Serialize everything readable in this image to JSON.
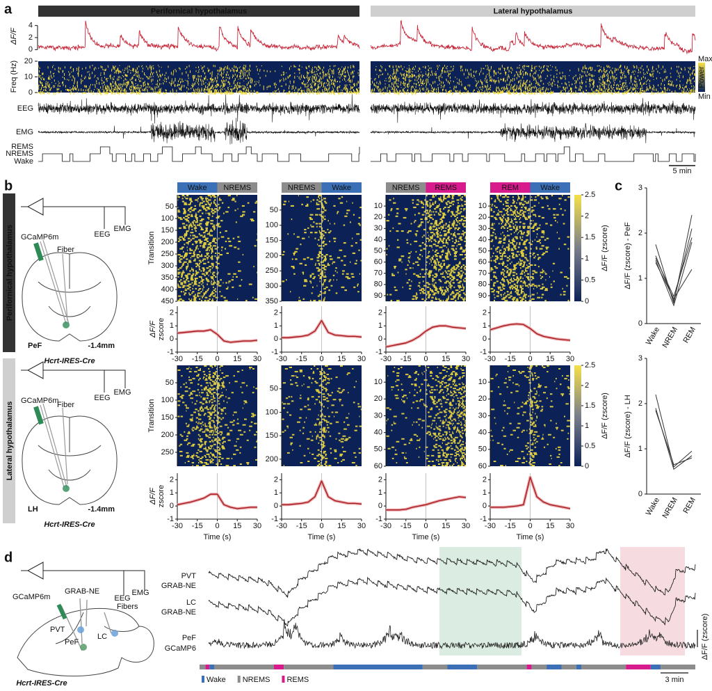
{
  "panel_labels": [
    "a",
    "b",
    "c",
    "d"
  ],
  "panel_a": {
    "headers": [
      "Perifornical hypothalamus",
      "Lateral hypothalamus"
    ],
    "dff_label": "ΔF/F",
    "dff_ticks": [
      0,
      2,
      4
    ],
    "dff_lim": [
      -1,
      5
    ],
    "freq_label": "Freq (Hz)",
    "freq_ticks": [
      0,
      10,
      20
    ],
    "freq_lim": [
      0,
      20
    ],
    "eeg": "EEG",
    "emg": "EMG",
    "states": [
      "REMS",
      "NREMS",
      "Wake"
    ],
    "colorbar": [
      "Max",
      "Power",
      "Min"
    ],
    "scale": "5 min"
  },
  "panel_b": {
    "regions": [
      "Perifornical hypothalamus",
      "Lateral hypothalamus"
    ],
    "diagrams": [
      {
        "sensor": "GCaMP6m",
        "fiber": "Fiber",
        "eeg": "EEG",
        "emg": "EMG",
        "area": "PeF",
        "depth": "-1.4mm",
        "mouse": "Hcrt-IRES-Cre"
      },
      {
        "sensor": "GCaMP6m",
        "fiber": "Fiber",
        "eeg": "EEG",
        "emg": "EMG",
        "area": "LH",
        "depth": "-1.4mm",
        "mouse": "Hcrt-IRES-Cre"
      }
    ],
    "transition_label": "Transition",
    "colorbar_label": "ΔF/F (zscore)",
    "colorbar_ticks": [
      0,
      0.5,
      1,
      1.5,
      2,
      2.5
    ],
    "colorbar_lim": [
      0,
      2.5
    ],
    "trace_label": [
      "ΔF/F",
      "zscore"
    ],
    "xlabel": "Time (s)",
    "xticks": [
      -30,
      -15,
      0,
      15,
      30
    ],
    "xlim": [
      -30,
      30
    ],
    "trace_yticks": [
      -1,
      0,
      1,
      2
    ],
    "trace_ylim": [
      -1,
      2.5
    ],
    "trace_x": [
      -30,
      -25,
      -20,
      -15,
      -10,
      -5,
      0,
      5,
      10,
      15,
      20,
      25,
      30
    ],
    "rows": [
      {
        "plots": [
          {
            "headers": [
              {
                "text": "Wake",
                "color": "#3b6fb6"
              },
              {
                "text": "NREMS",
                "color": "#8c8c8c"
              }
            ],
            "ylim": [
              0,
              450
            ],
            "yticks": [
              50,
              100,
              150,
              200,
              250,
              300,
              350,
              400,
              450
            ],
            "trace": [
              0.45,
              0.5,
              0.55,
              0.6,
              0.6,
              0.7,
              0.35,
              -0.15,
              -0.25,
              -0.2,
              -0.15,
              -0.15,
              -0.1
            ]
          },
          {
            "headers": [
              {
                "text": "NREMS",
                "color": "#8c8c8c"
              },
              {
                "text": "Wake",
                "color": "#3b6fb6"
              }
            ],
            "ylim": [
              0,
              350
            ],
            "yticks": [
              50,
              100,
              150,
              200,
              250,
              300,
              350
            ],
            "trace": [
              0.1,
              0.1,
              0.15,
              0.2,
              0.3,
              0.6,
              1.4,
              0.5,
              0.3,
              0.25,
              0.2,
              0.2,
              0.15
            ]
          },
          {
            "headers": [
              {
                "text": "NREMS",
                "color": "#8c8c8c"
              },
              {
                "text": "REMS",
                "color": "#d81b8c"
              }
            ],
            "ylim": [
              0,
              95
            ],
            "yticks": [
              10,
              20,
              30,
              40,
              50,
              60,
              70,
              80,
              90
            ],
            "trace": [
              -0.6,
              -0.5,
              -0.4,
              -0.3,
              -0.1,
              0.2,
              0.6,
              0.9,
              1.0,
              1.0,
              0.9,
              0.85,
              0.8
            ]
          },
          {
            "headers": [
              {
                "text": "REM",
                "color": "#d81b8c"
              },
              {
                "text": "Wake",
                "color": "#3b6fb6"
              }
            ],
            "ylim": [
              0,
              95
            ],
            "yticks": [
              10,
              20,
              30,
              40,
              50,
              60,
              70,
              80,
              90
            ],
            "trace": [
              0.7,
              0.85,
              1.0,
              1.1,
              1.15,
              1.1,
              0.8,
              0.4,
              0.2,
              0.1,
              0.0,
              -0.05,
              -0.1
            ]
          }
        ]
      },
      {
        "plots": [
          {
            "ylim": [
              0,
              290
            ],
            "yticks": [
              50,
              100,
              150,
              200,
              250
            ],
            "trace": [
              0.1,
              0.2,
              0.3,
              0.45,
              0.6,
              0.9,
              0.9,
              0.1,
              -0.1,
              -0.2,
              -0.15,
              -0.1,
              -0.1
            ]
          },
          {
            "ylim": [
              0,
              215
            ],
            "yticks": [
              50,
              100,
              150,
              200
            ],
            "trace": [
              0.1,
              0.1,
              0.15,
              0.2,
              0.3,
              0.7,
              1.9,
              0.7,
              0.4,
              0.3,
              0.2,
              0.2,
              0.15
            ]
          },
          {
            "ylim": [
              0,
              60
            ],
            "yticks": [
              10,
              20,
              30,
              40,
              50,
              60
            ],
            "trace": [
              -0.3,
              -0.3,
              -0.3,
              -0.25,
              -0.1,
              0.0,
              0.1,
              0.25,
              0.4,
              0.5,
              0.6,
              0.7,
              0.65
            ]
          },
          {
            "ylim": [
              0,
              60
            ],
            "yticks": [
              10,
              20,
              30,
              40,
              50,
              60
            ],
            "trace": [
              -0.1,
              -0.1,
              -0.1,
              -0.05,
              0.0,
              0.1,
              2.2,
              0.7,
              0.3,
              0.1,
              0.0,
              -0.1,
              -0.2
            ]
          }
        ]
      }
    ]
  },
  "panel_c": {
    "categories": [
      "Wake",
      "NREM",
      "REM"
    ],
    "ylim": [
      0,
      3
    ],
    "yticks": [
      0,
      1,
      2,
      3
    ],
    "plots": [
      {
        "ylabel": "ΔF/F (zscore) - PeF",
        "series": [
          [
            1.75,
            0.45,
            2.4
          ],
          [
            1.5,
            0.5,
            2.1
          ],
          [
            1.45,
            0.6,
            1.9
          ],
          [
            1.4,
            0.4,
            1.8
          ],
          [
            1.35,
            0.55,
            1.2
          ]
        ]
      },
      {
        "ylabel": "ΔF/F (zscore) - LH",
        "series": [
          [
            2.2,
            0.6,
            0.95
          ],
          [
            1.9,
            0.55,
            0.85
          ],
          [
            1.85,
            0.65,
            0.8
          ]
        ]
      }
    ]
  },
  "panel_d": {
    "diagram": {
      "eeg": "EEG",
      "emg": "EMG",
      "sensor": "GCaMP6m",
      "sensor2": "GRAB-NE",
      "fibers": "Fibers",
      "areas": [
        "PVT",
        "PeF",
        "LC"
      ],
      "mouse": "Hcrt-IRES-Cre"
    },
    "traces": [
      [
        "PVT",
        "GRAB-NE"
      ],
      [
        "LC",
        "GRAB-NE"
      ],
      [
        "PeF",
        "GCaMP6"
      ]
    ],
    "ylabel": "ΔF/F (zscore)",
    "legend": [
      {
        "name": "Wake",
        "color": "#3b6fb6"
      },
      {
        "name": "NREMS",
        "color": "#8c8c8c"
      },
      {
        "name": "REMS",
        "color": "#d81b8c"
      }
    ],
    "scale": "3 min"
  }
}
